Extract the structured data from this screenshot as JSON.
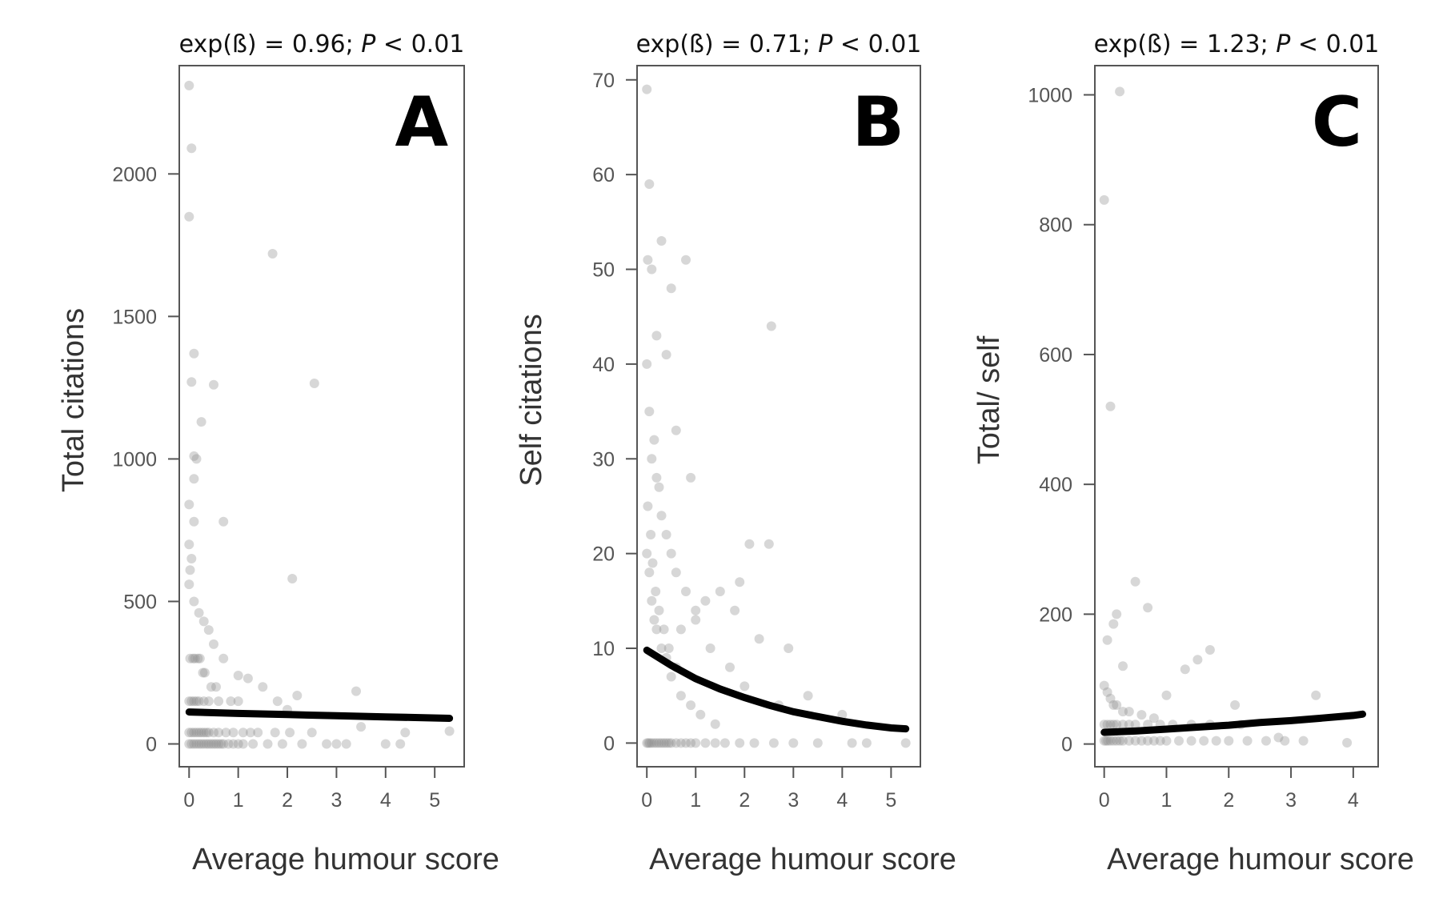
{
  "chart_data": [
    {
      "type": "scatter",
      "panel": "A",
      "header": {
        "prefix": "exp(ß) = 0.96; ",
        "p": "P",
        "suffix": " < 0.01"
      },
      "xlabel": "Average humour score",
      "ylabel": "Total citations",
      "xlim": [
        -0.2,
        5.6
      ],
      "ylim": [
        -80,
        2380
      ],
      "xticks": [
        0,
        1,
        2,
        3,
        4,
        5
      ],
      "yticks": [
        0,
        500,
        1000,
        1500,
        2000
      ],
      "colors": {
        "points": "#8c8c8c",
        "fit": "#000000"
      },
      "fit": {
        "x": [
          0,
          1,
          2,
          3,
          4,
          5.3
        ],
        "y": [
          112,
          107,
          103,
          99,
          95,
          90
        ]
      },
      "points": {
        "x": [
          0,
          0.05,
          0,
          0.1,
          0.05,
          0.1,
          0.5,
          0.1,
          0.25,
          0.15,
          0.1,
          0,
          1.7,
          2.55,
          0.7,
          2.1,
          0,
          0.05,
          0.02,
          0,
          0.1,
          0.2,
          0.3,
          0.4,
          0.5,
          0.7,
          1.0,
          1.2,
          1.5,
          1.8,
          2.2,
          3.4,
          2.0,
          3.5,
          4.4,
          5.3,
          0,
          0.05,
          0.1,
          0.15,
          0.2,
          0.25,
          0.3,
          0.35,
          0.4,
          0.45,
          0.5,
          0.55,
          0.6,
          0.65,
          0.7,
          0.8,
          0.9,
          1.0,
          1.1,
          1.3,
          1.6,
          1.9,
          2.3,
          2.8,
          3.0,
          3.2,
          4.0,
          4.3,
          0,
          0.05,
          0.1,
          0.15,
          0.2,
          0.25,
          0.3,
          0.35,
          0.4,
          0.5,
          0.6,
          0.75,
          0.9,
          1.1,
          1.25,
          1.4,
          1.75,
          2.05,
          2.5,
          0,
          0.05,
          0.1,
          0.15,
          0.2,
          0.3,
          0.4,
          0.6,
          0.85,
          1.0,
          0.02,
          0.08,
          0.12,
          0.18,
          0.22,
          0.28,
          0.32,
          0.45,
          0.55
        ],
        "y": [
          2310,
          2090,
          1850,
          1370,
          1270,
          1010,
          1260,
          930,
          1130,
          1000,
          780,
          840,
          1720,
          1265,
          780,
          580,
          700,
          650,
          610,
          560,
          500,
          460,
          430,
          400,
          350,
          300,
          240,
          230,
          200,
          150,
          170,
          185,
          120,
          60,
          40,
          45,
          0,
          0,
          0,
          0,
          0,
          0,
          0,
          0,
          0,
          0,
          0,
          0,
          0,
          0,
          0,
          0,
          0,
          0,
          0,
          0,
          0,
          0,
          0,
          0,
          0,
          0,
          0,
          0,
          40,
          40,
          40,
          40,
          40,
          40,
          40,
          40,
          40,
          40,
          40,
          40,
          40,
          40,
          40,
          40,
          40,
          40,
          40,
          150,
          150,
          150,
          150,
          150,
          150,
          150,
          150,
          150,
          150,
          300,
          300,
          300,
          300,
          300,
          250,
          250,
          200,
          200
        ]
      }
    },
    {
      "type": "scatter",
      "panel": "B",
      "header": {
        "prefix": "exp(ß) = 0.71; ",
        "p": "P",
        "suffix": " < 0.01"
      },
      "xlabel": "Average humour score",
      "ylabel": "Self citations",
      "xlim": [
        -0.2,
        5.6
      ],
      "ylim": [
        -2.5,
        71.5
      ],
      "xticks": [
        0,
        1,
        2,
        3,
        4,
        5
      ],
      "yticks": [
        0,
        10,
        20,
        30,
        40,
        50,
        60,
        70
      ],
      "colors": {
        "points": "#8c8c8c",
        "fit": "#000000"
      },
      "fit": {
        "x": [
          0,
          0.5,
          1,
          1.5,
          2,
          2.5,
          3,
          3.5,
          4,
          4.5,
          5,
          5.3
        ],
        "y": [
          9.8,
          8.2,
          6.8,
          5.7,
          4.8,
          4.0,
          3.3,
          2.8,
          2.3,
          1.9,
          1.6,
          1.5
        ]
      },
      "points": {
        "x": [
          0,
          0.05,
          0.02,
          0.1,
          0.3,
          0.5,
          0.8,
          0.4,
          0.2,
          0.6,
          0.9,
          2.55,
          2.1,
          2.5,
          1.9,
          1.5,
          1.2,
          0.7,
          1.0,
          1.8,
          2.3,
          2.9,
          3.3,
          4.0,
          5.3,
          0,
          0.03,
          0.06,
          0.1,
          0.15,
          0.2,
          0.25,
          0.3,
          0.35,
          0.4,
          0.45,
          0.5,
          0.6,
          0.7,
          0.8,
          0.9,
          1.0,
          1.2,
          1.4,
          1.6,
          1.9,
          2.2,
          2.6,
          3.0,
          3.5,
          4.2,
          4.5,
          0,
          0.05,
          0.1,
          0.15,
          0.2,
          0.25,
          0.3,
          0.4,
          0.5,
          0.6,
          0.8,
          1.0,
          1.3,
          1.7,
          2.0,
          2.7,
          0,
          0.05,
          0.1,
          0.15,
          0.2,
          0.3,
          0.4,
          0.5,
          0.7,
          0.9,
          1.1,
          1.4,
          0.02,
          0.08,
          0.12,
          0.18,
          0.25,
          0.35,
          0.45,
          0.6
        ],
        "y": [
          69,
          59,
          51,
          50,
          53,
          48,
          51,
          41,
          43,
          33,
          28,
          44,
          21,
          21,
          17,
          16,
          15,
          12,
          14,
          14,
          11,
          10,
          5,
          3,
          0,
          0,
          0,
          0,
          0,
          0,
          0,
          0,
          0,
          0,
          0,
          0,
          0,
          0,
          0,
          0,
          0,
          0,
          0,
          0,
          0,
          0,
          0,
          0,
          0,
          0,
          0,
          0,
          40,
          35,
          30,
          32,
          28,
          27,
          24,
          22,
          20,
          18,
          16,
          13,
          10,
          8,
          6,
          4,
          20,
          18,
          15,
          13,
          12,
          10,
          9,
          7,
          5,
          4,
          3,
          2,
          25,
          22,
          19,
          16,
          14,
          12,
          10,
          8
        ]
      }
    },
    {
      "type": "scatter",
      "panel": "C",
      "header": {
        "prefix": "exp(ß) = 1.23; ",
        "p": "P",
        "suffix": " < 0.01"
      },
      "xlabel": "Average humour score",
      "ylabel": "Total/ self",
      "xlim": [
        -0.15,
        4.4
      ],
      "ylim": [
        -35,
        1045
      ],
      "xticks": [
        0,
        1,
        2,
        3,
        4
      ],
      "yticks": [
        0,
        200,
        400,
        600,
        800,
        1000
      ],
      "colors": {
        "points": "#8c8c8c",
        "fit": "#000000"
      },
      "fit": {
        "x": [
          0,
          0.5,
          1,
          1.5,
          2,
          2.5,
          3,
          3.5,
          4,
          4.15
        ],
        "y": [
          18,
          20,
          23,
          26,
          29,
          33,
          36,
          40,
          44,
          46
        ]
      },
      "points": {
        "x": [
          0.25,
          0,
          0.1,
          0.5,
          0.7,
          0.2,
          0.15,
          0.3,
          0.05,
          1.3,
          1.5,
          1.7,
          1.0,
          3.4,
          3.9,
          2.1,
          2.8,
          0,
          0.03,
          0.06,
          0.1,
          0.15,
          0.2,
          0.25,
          0.3,
          0.4,
          0.5,
          0.6,
          0.7,
          0.8,
          0.9,
          1.0,
          1.2,
          1.4,
          1.6,
          1.8,
          2.0,
          2.3,
          2.6,
          2.9,
          3.2,
          0,
          0.05,
          0.1,
          0.15,
          0.2,
          0.3,
          0.4,
          0.5,
          0.7,
          0.9,
          1.1,
          1.4,
          1.7,
          2.2,
          0,
          0.05,
          0.1,
          0.15,
          0.2,
          0.3,
          0.4,
          0.6,
          0.8
        ],
        "y": [
          1005,
          838,
          520,
          250,
          210,
          200,
          185,
          120,
          160,
          115,
          130,
          145,
          75,
          75,
          2,
          60,
          10,
          5,
          5,
          5,
          5,
          5,
          5,
          5,
          5,
          5,
          5,
          5,
          5,
          5,
          5,
          5,
          5,
          5,
          5,
          5,
          5,
          5,
          5,
          5,
          5,
          30,
          30,
          30,
          30,
          30,
          30,
          30,
          30,
          30,
          30,
          30,
          30,
          30,
          30,
          90,
          80,
          70,
          60,
          60,
          50,
          50,
          45,
          40
        ]
      }
    }
  ]
}
